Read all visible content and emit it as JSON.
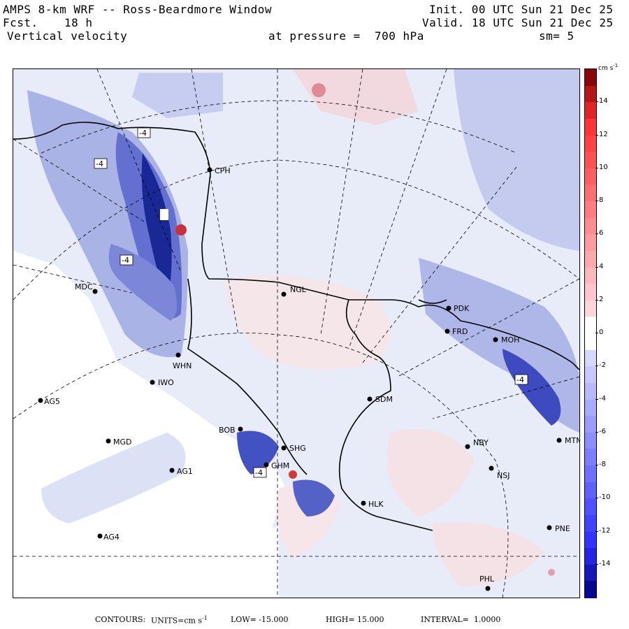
{
  "header": {
    "model": "AMPS 8-km WRF -- Ross-Beardmore Window",
    "forecast_label": "Fcst.",
    "forecast_value": "18 h",
    "field": "Vertical velocity",
    "init": "Init. 00 UTC Sun 21 Dec 25",
    "valid": "Valid. 18 UTC Sun 21 Dec 25",
    "level": "at pressure =  700 hPa",
    "smoothing": "sm= 5"
  },
  "colorbar": {
    "units": "cm s",
    "units_exp": "-1",
    "range": [
      -16,
      16
    ],
    "tick_labels": [
      "14",
      "12",
      "10",
      "8",
      "6",
      "4",
      "2",
      "0",
      "-2",
      "-4",
      "-6",
      "-8",
      "-10",
      "-12",
      "-14"
    ],
    "tick_values": [
      14,
      12,
      10,
      8,
      6,
      4,
      2,
      0,
      -2,
      -4,
      -6,
      -8,
      -10,
      -12,
      -14
    ]
  },
  "stations": [
    {
      "code": "CPH"
    },
    {
      "code": "MDC"
    },
    {
      "code": "NGL"
    },
    {
      "code": "PDK"
    },
    {
      "code": "FRD"
    },
    {
      "code": "MOH"
    },
    {
      "code": "WHN"
    },
    {
      "code": "IWO"
    },
    {
      "code": "AG5"
    },
    {
      "code": "SDM"
    },
    {
      "code": "BOB"
    },
    {
      "code": "SHG"
    },
    {
      "code": "MGD"
    },
    {
      "code": "GHM"
    },
    {
      "code": "NBY"
    },
    {
      "code": "MTM"
    },
    {
      "code": "AG1"
    },
    {
      "code": "NSJ"
    },
    {
      "code": "HLK"
    },
    {
      "code": "AG4"
    },
    {
      "code": "PNE"
    },
    {
      "code": "PHL"
    }
  ],
  "contour_labels": [
    "-4",
    "-4",
    "-4",
    "-4",
    "-4"
  ],
  "footer": {
    "contours_label": "CONTOURS:",
    "units_text": "UNITS=cm s",
    "units_exp": "-1",
    "low": "LOW= -15.000",
    "high": "HIGH= 15.000",
    "interval": "INTERVAL=  1.0000"
  }
}
